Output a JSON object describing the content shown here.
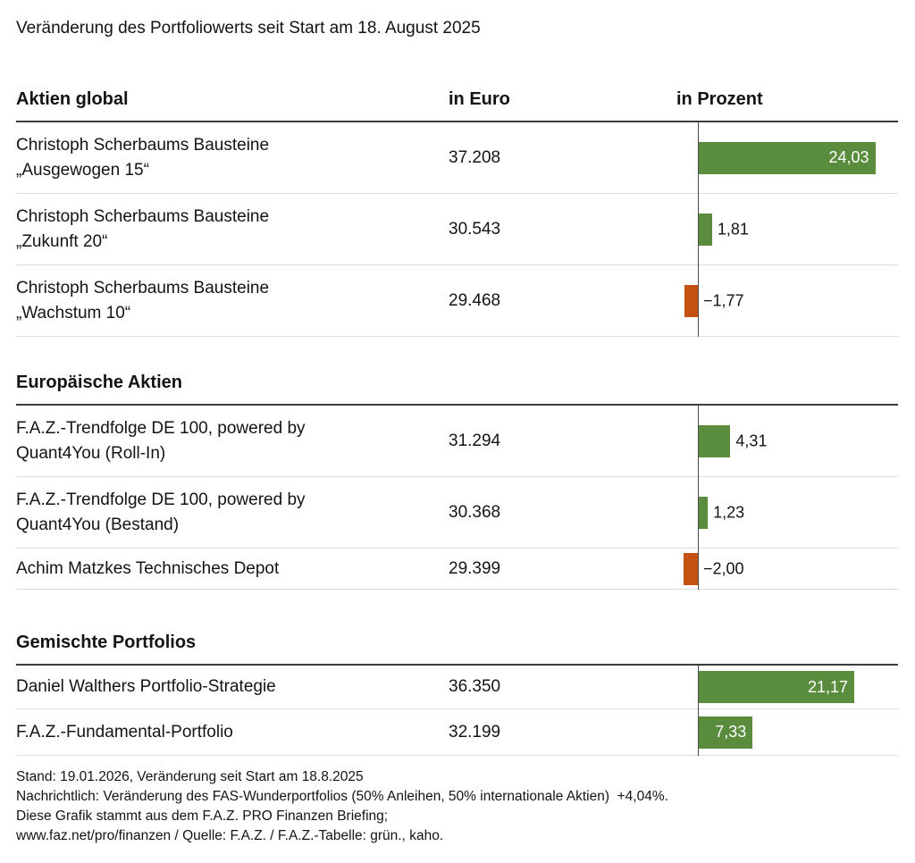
{
  "title": "Veränderung des Portfoliowerts seit Start am 18. August 2025",
  "columns": {
    "euro": "in Euro",
    "percent": "in Prozent"
  },
  "colors": {
    "positive_bar": "#5a8c3e",
    "negative_bar": "#c4510f"
  },
  "chart_data": {
    "type": "bar",
    "orientation": "horizontal",
    "value_unit": "percent",
    "zero_axis_line": true,
    "xlim_approx": [
      -15,
      27
    ],
    "sections": [
      {
        "header": "Aktien global",
        "rows": [
          {
            "label": "Christoph Scherbaums Bausteine\n„Ausgewogen 15“",
            "euro": "37.208",
            "percent": 24.03,
            "percent_label": "24,03"
          },
          {
            "label": "Christoph Scherbaums Bausteine\n„Zukunft 20“",
            "euro": "30.543",
            "percent": 1.81,
            "percent_label": "1,81"
          },
          {
            "label": "Christoph Scherbaums Bausteine\n„Wachstum 10“",
            "euro": "29.468",
            "percent": -1.77,
            "percent_label": "−1,77"
          }
        ]
      },
      {
        "header": "Europäische Aktien",
        "rows": [
          {
            "label": "F.A.Z.-Trendfolge DE 100, powered by\nQuant4You (Roll-In)",
            "euro": "31.294",
            "percent": 4.31,
            "percent_label": "4,31"
          },
          {
            "label": "F.A.Z.-Trendfolge DE 100, powered by\nQuant4You (Bestand)",
            "euro": "30.368",
            "percent": 1.23,
            "percent_label": "1,23"
          },
          {
            "label": "Achim Matzkes Technisches Depot",
            "euro": "29.399",
            "percent": -2.0,
            "percent_label": "−2,00"
          }
        ]
      },
      {
        "header": "Gemischte Portfolios",
        "rows": [
          {
            "label": "Daniel Walthers Portfolio-Strategie",
            "euro": "36.350",
            "percent": 21.17,
            "percent_label": "21,17"
          },
          {
            "label": "F.A.Z.-Fundamental-Portfolio",
            "euro": "32.199",
            "percent": 7.33,
            "percent_label": "7,33"
          }
        ]
      }
    ]
  },
  "footnotes": [
    "Stand: 19.01.2026, Veränderung seit Start am 18.8.2025",
    "Nachrichtlich: Veränderung des FAS-Wunderportfolios (50% Anleihen, 50% internationale Aktien)  +4,04%.",
    "Diese Grafik stammt aus dem F.A.Z. PRO Finanzen Briefing;",
    "www.faz.net/pro/finanzen / Quelle: F.A.Z. / F.A.Z.-Tabelle: grün., kaho."
  ]
}
